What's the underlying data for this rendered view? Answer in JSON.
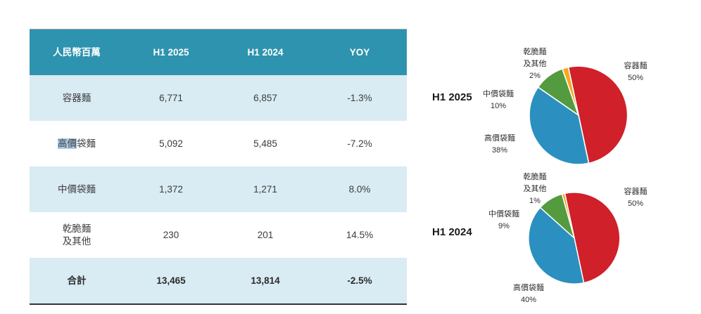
{
  "colors": {
    "header_teal": "#2E93AE",
    "row_light": "#D9EBF3",
    "selection_highlight": "#ABCBE6",
    "red": "#D02029",
    "blue": "#2B90BF",
    "green": "#539B3E",
    "orange": "#F5A81E"
  },
  "table": {
    "headers": [
      "人民幣百萬",
      "H1 2025",
      "H1 2024",
      "YOY"
    ],
    "rows": [
      {
        "label": "容器麵",
        "h1_2025": "6,771",
        "h1_2024": "6,857",
        "yoy": "-1.3%"
      },
      {
        "label_hl": "高價",
        "label_rest": "袋麵",
        "h1_2025": "5,092",
        "h1_2024": "5,485",
        "yoy": "-7.2%"
      },
      {
        "label": "中價袋麵",
        "h1_2025": "1,372",
        "h1_2024": "1,271",
        "yoy": "8.0%"
      },
      {
        "label_line1": "乾脆麵",
        "label_line2": "及其他",
        "h1_2025": "230",
        "h1_2024": "201",
        "yoy": "14.5%"
      },
      {
        "label": "合計",
        "h1_2025": "13,465",
        "h1_2024": "13,814",
        "yoy": "-2.5%"
      }
    ]
  },
  "pies": [
    {
      "period": "H1 2025",
      "slices": [
        {
          "name": "容器麵",
          "pct": "50%",
          "value": 50,
          "color_key": "red"
        },
        {
          "name": "高價袋麵",
          "pct": "38%",
          "value": 38,
          "color_key": "blue"
        },
        {
          "name": "中價袋麵",
          "pct": "10%",
          "value": 10,
          "color_key": "green"
        },
        {
          "name": "乾脆麵及其他",
          "name_line1": "乾脆麵",
          "name_line2": "及其他",
          "pct": "2%",
          "value": 2,
          "color_key": "orange"
        }
      ]
    },
    {
      "period": "H1 2024",
      "slices": [
        {
          "name": "容器麵",
          "pct": "50%",
          "value": 50,
          "color_key": "red"
        },
        {
          "name": "高價袋麵",
          "pct": "40%",
          "value": 40,
          "color_key": "blue"
        },
        {
          "name": "中價袋麵",
          "pct": "9%",
          "value": 9,
          "color_key": "green"
        },
        {
          "name": "乾脆麵及其他",
          "name_line1": "乾脆麵",
          "name_line2": "及其他",
          "pct": "1%",
          "value": 1,
          "color_key": "orange"
        }
      ]
    }
  ],
  "chart_data": [
    {
      "type": "table",
      "title": "人民幣百萬",
      "columns": [
        "人民幣百萬",
        "H1 2025",
        "H1 2024",
        "YOY"
      ],
      "rows": [
        [
          "容器麵",
          6771,
          6857,
          "-1.3%"
        ],
        [
          "高價袋麵",
          5092,
          5485,
          "-7.2%"
        ],
        [
          "中價袋麵",
          1372,
          1271,
          "8.0%"
        ],
        [
          "乾脆麵及其他",
          230,
          201,
          "14.5%"
        ],
        [
          "合計",
          13465,
          13814,
          "-2.5%"
        ]
      ]
    },
    {
      "type": "pie",
      "title": "H1 2025",
      "labels": [
        "容器麵",
        "高價袋麵",
        "中價袋麵",
        "乾脆麵及其他"
      ],
      "values": [
        50,
        38,
        10,
        2
      ],
      "unit": "%",
      "colors": [
        "#D02029",
        "#2B90BF",
        "#539B3E",
        "#F5A81E"
      ],
      "legend_position": "outside-labels",
      "start_angle_deg": -12,
      "direction": "clockwise"
    },
    {
      "type": "pie",
      "title": "H1 2024",
      "labels": [
        "容器麵",
        "高價袋麵",
        "中價袋麵",
        "乾脆麵及其他"
      ],
      "values": [
        50,
        40,
        9,
        1
      ],
      "unit": "%",
      "colors": [
        "#D02029",
        "#2B90BF",
        "#539B3E",
        "#F5A81E"
      ],
      "legend_position": "outside-labels",
      "start_angle_deg": -12,
      "direction": "clockwise"
    }
  ]
}
